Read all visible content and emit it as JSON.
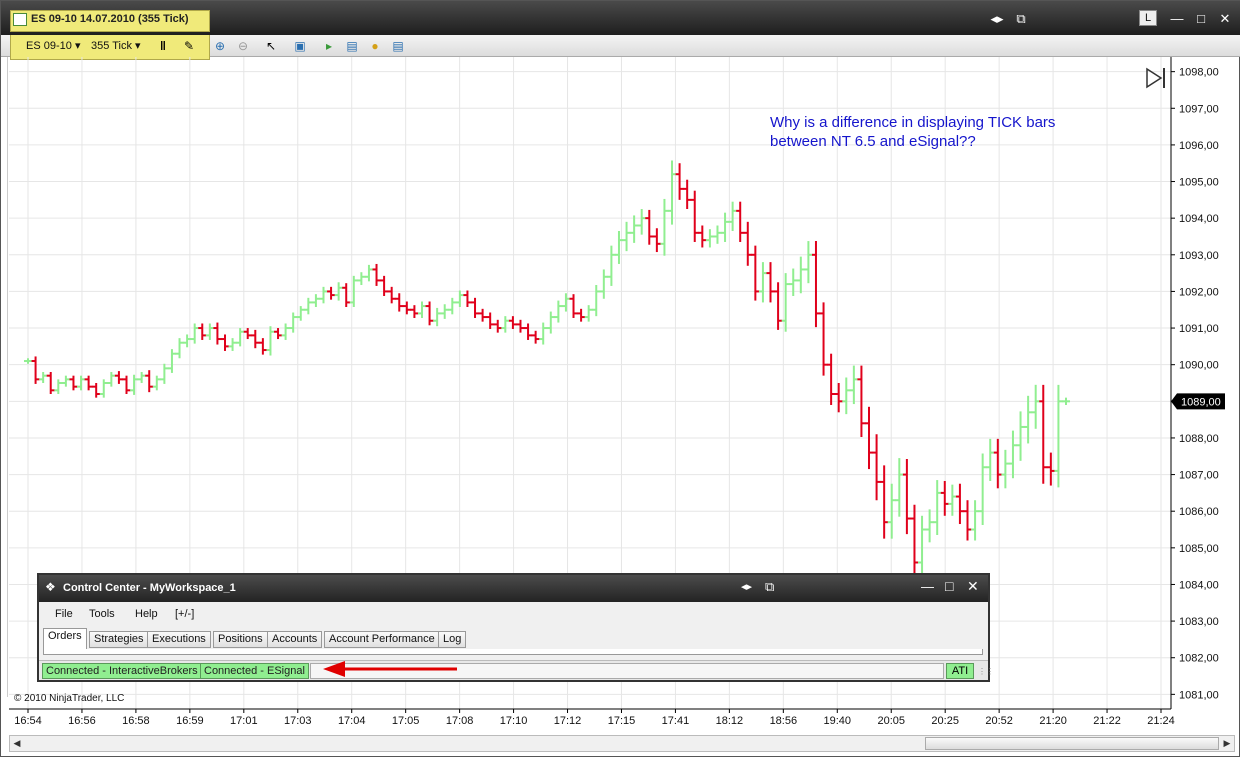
{
  "window": {
    "title": "ES 09-10  14.07.2010 (355 Tick)",
    "buttons": [
      "◂▸",
      "⧉",
      "L",
      "—",
      "□",
      "✕"
    ]
  },
  "toolbar": {
    "instrument": "ES 09-10",
    "period": "355 Tick"
  },
  "annotation": {
    "line1": "Why is a difference in displaying TICK bars",
    "line2": "between NT 6.5 and eSignal??"
  },
  "copyright": "© 2010 NinjaTrader, LLC",
  "control_center": {
    "title": "Control Center - MyWorkspace_1",
    "menu": [
      "File",
      "Tools",
      "Help",
      "[+/-]"
    ],
    "tabs": [
      "Orders",
      "Strategies",
      "Executions",
      "Positions",
      "Accounts",
      "Account Performance",
      "Log"
    ],
    "connections": [
      "Connected - InteractiveBrokers",
      "Connected - ESignal"
    ],
    "ati": "ATI"
  },
  "colors": {
    "up": "#90ee90",
    "down": "#e0001b",
    "axis": "#000000",
    "grid": "#e6e6e6"
  },
  "chart_data": {
    "type": "ohlc",
    "instrument": "ES 09-10",
    "date": "14.07.2010",
    "period": "355 Tick",
    "yticks": [
      "1098,00",
      "1097,00",
      "1096,00",
      "1095,00",
      "1094,00",
      "1093,00",
      "1092,00",
      "1091,00",
      "1090,00",
      "1089,00",
      "1088,00",
      "1087,00",
      "1086,00",
      "1085,00",
      "1084,00",
      "1083,00",
      "1082,00",
      "1081,00"
    ],
    "ylim": [
      1080.6,
      1098.4
    ],
    "last_price_label": "1089,00",
    "last_price": 1089.0,
    "xticks": [
      "16:54",
      "16:56",
      "16:58",
      "16:59",
      "17:01",
      "17:03",
      "17:04",
      "17:05",
      "17:08",
      "17:10",
      "17:12",
      "17:15",
      "17:41",
      "18:12",
      "18:56",
      "19:40",
      "20:05",
      "20:25",
      "20:52",
      "21:20",
      "21:22",
      "21:24"
    ],
    "grid": true,
    "closes": [
      1090.1,
      1089.6,
      1089.7,
      1089.3,
      1089.5,
      1089.6,
      1089.4,
      1089.6,
      1089.4,
      1089.2,
      1089.5,
      1089.7,
      1089.6,
      1089.3,
      1089.6,
      1089.7,
      1089.4,
      1089.6,
      1089.9,
      1090.3,
      1090.6,
      1090.7,
      1091.0,
      1090.8,
      1091.0,
      1090.7,
      1090.5,
      1090.6,
      1090.9,
      1090.8,
      1090.6,
      1090.4,
      1090.9,
      1090.8,
      1091.0,
      1091.3,
      1091.5,
      1091.7,
      1091.8,
      1092.0,
      1091.9,
      1092.1,
      1091.7,
      1092.3,
      1092.4,
      1092.6,
      1092.3,
      1092.0,
      1091.8,
      1091.6,
      1091.5,
      1091.4,
      1091.6,
      1091.2,
      1091.4,
      1091.5,
      1091.7,
      1091.9,
      1091.7,
      1091.4,
      1091.3,
      1091.1,
      1091.0,
      1091.2,
      1091.1,
      1091.0,
      1090.8,
      1090.7,
      1091.0,
      1091.3,
      1091.6,
      1091.8,
      1091.4,
      1091.3,
      1091.5,
      1092.0,
      1092.4,
      1093.0,
      1093.4,
      1093.6,
      1093.8,
      1094.0,
      1093.5,
      1093.3,
      1094.2,
      1095.2,
      1094.8,
      1094.5,
      1093.6,
      1093.4,
      1093.5,
      1093.6,
      1093.9,
      1094.2,
      1093.6,
      1093.0,
      1092.0,
      1092.5,
      1092.0,
      1091.2,
      1092.2,
      1092.3,
      1092.6,
      1093.0,
      1091.4,
      1090.0,
      1089.2,
      1089.0,
      1089.3,
      1089.6,
      1088.4,
      1087.6,
      1086.8,
      1085.7,
      1086.3,
      1087.0,
      1085.8,
      1084.6,
      1085.5,
      1085.7,
      1086.5,
      1086.2,
      1086.4,
      1086.0,
      1085.5,
      1086.0,
      1087.2,
      1087.6,
      1087.0,
      1087.3,
      1087.8,
      1088.3,
      1088.7,
      1089.0,
      1087.2,
      1087.1,
      1089.0,
      1089.0
    ],
    "ranges": [
      0.3,
      0.5,
      0.4,
      0.4,
      0.4,
      0.4,
      0.4,
      0.4,
      0.4,
      0.4,
      0.4,
      0.4,
      0.5,
      0.4,
      0.5,
      0.4,
      0.6,
      0.4,
      0.5,
      0.5,
      0.5,
      0.5,
      0.5,
      0.5,
      0.5,
      0.6,
      0.5,
      0.5,
      0.4,
      0.4,
      0.6,
      0.5,
      0.6,
      0.4,
      0.5,
      0.5,
      0.4,
      0.5,
      0.5,
      0.5,
      0.5,
      0.6,
      0.5,
      0.5,
      0.5,
      0.5,
      0.6,
      0.5,
      0.5,
      0.6,
      0.5,
      0.5,
      0.5,
      0.5,
      0.6,
      0.6,
      0.5,
      0.5,
      0.5,
      0.5,
      0.5,
      0.5,
      0.5,
      0.5,
      0.5,
      0.5,
      0.5,
      0.5,
      0.6,
      0.6,
      0.6,
      0.6,
      0.5,
      0.5,
      0.5,
      0.7,
      0.8,
      1.0,
      1.0,
      1.2,
      1.1,
      1.0,
      0.9,
      0.9,
      1.3,
      1.5,
      1.2,
      1.0,
      1.0,
      0.8,
      0.8,
      0.8,
      1.0,
      1.0,
      1.0,
      1.2,
      1.0,
      1.2,
      1.2,
      1.0,
      1.2,
      1.3,
      1.4,
      1.5,
      1.5,
      1.2,
      1.2,
      1.2,
      1.4,
      1.5,
      1.5,
      1.8,
      2.0,
      1.8,
      1.8,
      1.8,
      1.7,
      1.5,
      1.5,
      1.4,
      1.4,
      1.3,
      1.3,
      1.4,
      1.2,
      1.2,
      1.5,
      1.5,
      1.5,
      1.5,
      1.6,
      1.7,
      1.8,
      1.8,
      1.8,
      1.6,
      1.8,
      0.4
    ]
  }
}
